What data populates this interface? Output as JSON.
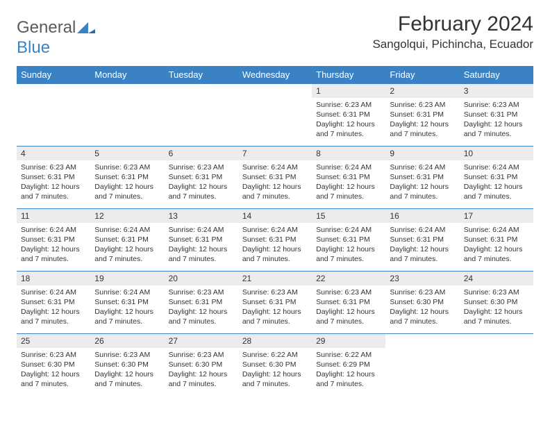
{
  "brand": {
    "word1": "General",
    "word2": "Blue",
    "word1_color": "#5a5a5a",
    "word2_color": "#3b82c4",
    "mark_color": "#3b82c4"
  },
  "header": {
    "title": "February 2024",
    "location": "Sangolqui, Pichincha, Ecuador"
  },
  "style": {
    "header_bg": "#3b82c4",
    "header_text": "#ffffff",
    "daynum_bg": "#ececec",
    "cell_border": "#3b82c4",
    "body_bg": "#ffffff",
    "text_color": "#333333",
    "title_fontsize": 30,
    "location_fontsize": 17,
    "dayheader_fontsize": 13,
    "daynum_fontsize": 12,
    "daytext_fontsize": 10.5
  },
  "day_headers": [
    "Sunday",
    "Monday",
    "Tuesday",
    "Wednesday",
    "Thursday",
    "Friday",
    "Saturday"
  ],
  "weeks": [
    [
      null,
      null,
      null,
      null,
      {
        "num": "1",
        "sunrise": "6:23 AM",
        "sunset": "6:31 PM",
        "daylight": "12 hours and 7 minutes."
      },
      {
        "num": "2",
        "sunrise": "6:23 AM",
        "sunset": "6:31 PM",
        "daylight": "12 hours and 7 minutes."
      },
      {
        "num": "3",
        "sunrise": "6:23 AM",
        "sunset": "6:31 PM",
        "daylight": "12 hours and 7 minutes."
      }
    ],
    [
      {
        "num": "4",
        "sunrise": "6:23 AM",
        "sunset": "6:31 PM",
        "daylight": "12 hours and 7 minutes."
      },
      {
        "num": "5",
        "sunrise": "6:23 AM",
        "sunset": "6:31 PM",
        "daylight": "12 hours and 7 minutes."
      },
      {
        "num": "6",
        "sunrise": "6:23 AM",
        "sunset": "6:31 PM",
        "daylight": "12 hours and 7 minutes."
      },
      {
        "num": "7",
        "sunrise": "6:24 AM",
        "sunset": "6:31 PM",
        "daylight": "12 hours and 7 minutes."
      },
      {
        "num": "8",
        "sunrise": "6:24 AM",
        "sunset": "6:31 PM",
        "daylight": "12 hours and 7 minutes."
      },
      {
        "num": "9",
        "sunrise": "6:24 AM",
        "sunset": "6:31 PM",
        "daylight": "12 hours and 7 minutes."
      },
      {
        "num": "10",
        "sunrise": "6:24 AM",
        "sunset": "6:31 PM",
        "daylight": "12 hours and 7 minutes."
      }
    ],
    [
      {
        "num": "11",
        "sunrise": "6:24 AM",
        "sunset": "6:31 PM",
        "daylight": "12 hours and 7 minutes."
      },
      {
        "num": "12",
        "sunrise": "6:24 AM",
        "sunset": "6:31 PM",
        "daylight": "12 hours and 7 minutes."
      },
      {
        "num": "13",
        "sunrise": "6:24 AM",
        "sunset": "6:31 PM",
        "daylight": "12 hours and 7 minutes."
      },
      {
        "num": "14",
        "sunrise": "6:24 AM",
        "sunset": "6:31 PM",
        "daylight": "12 hours and 7 minutes."
      },
      {
        "num": "15",
        "sunrise": "6:24 AM",
        "sunset": "6:31 PM",
        "daylight": "12 hours and 7 minutes."
      },
      {
        "num": "16",
        "sunrise": "6:24 AM",
        "sunset": "6:31 PM",
        "daylight": "12 hours and 7 minutes."
      },
      {
        "num": "17",
        "sunrise": "6:24 AM",
        "sunset": "6:31 PM",
        "daylight": "12 hours and 7 minutes."
      }
    ],
    [
      {
        "num": "18",
        "sunrise": "6:24 AM",
        "sunset": "6:31 PM",
        "daylight": "12 hours and 7 minutes."
      },
      {
        "num": "19",
        "sunrise": "6:24 AM",
        "sunset": "6:31 PM",
        "daylight": "12 hours and 7 minutes."
      },
      {
        "num": "20",
        "sunrise": "6:23 AM",
        "sunset": "6:31 PM",
        "daylight": "12 hours and 7 minutes."
      },
      {
        "num": "21",
        "sunrise": "6:23 AM",
        "sunset": "6:31 PM",
        "daylight": "12 hours and 7 minutes."
      },
      {
        "num": "22",
        "sunrise": "6:23 AM",
        "sunset": "6:31 PM",
        "daylight": "12 hours and 7 minutes."
      },
      {
        "num": "23",
        "sunrise": "6:23 AM",
        "sunset": "6:30 PM",
        "daylight": "12 hours and 7 minutes."
      },
      {
        "num": "24",
        "sunrise": "6:23 AM",
        "sunset": "6:30 PM",
        "daylight": "12 hours and 7 minutes."
      }
    ],
    [
      {
        "num": "25",
        "sunrise": "6:23 AM",
        "sunset": "6:30 PM",
        "daylight": "12 hours and 7 minutes."
      },
      {
        "num": "26",
        "sunrise": "6:23 AM",
        "sunset": "6:30 PM",
        "daylight": "12 hours and 7 minutes."
      },
      {
        "num": "27",
        "sunrise": "6:23 AM",
        "sunset": "6:30 PM",
        "daylight": "12 hours and 7 minutes."
      },
      {
        "num": "28",
        "sunrise": "6:22 AM",
        "sunset": "6:30 PM",
        "daylight": "12 hours and 7 minutes."
      },
      {
        "num": "29",
        "sunrise": "6:22 AM",
        "sunset": "6:29 PM",
        "daylight": "12 hours and 7 minutes."
      },
      null,
      null
    ]
  ],
  "labels": {
    "sunrise": "Sunrise:",
    "sunset": "Sunset:",
    "daylight": "Daylight:"
  }
}
